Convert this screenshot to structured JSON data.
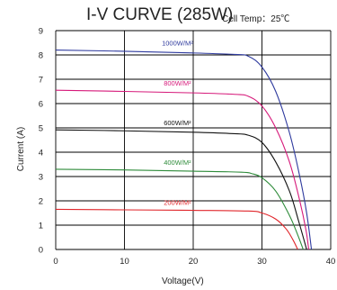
{
  "chart_data": {
    "type": "line",
    "title": "I-V CURVE (285W)",
    "subtitle": "Cell Temp：25℃",
    "xlabel": "Voltage(V)",
    "ylabel": "Current (A)",
    "xlim": [
      0,
      40
    ],
    "ylim": [
      0,
      9
    ],
    "xticks": [
      0,
      10,
      20,
      30,
      40
    ],
    "yticks": [
      0,
      1,
      2,
      3,
      4,
      5,
      6,
      7,
      8,
      9
    ],
    "grid": true,
    "series": [
      {
        "name": "1000W/M²",
        "color": "#2e3a9e",
        "isc": 8.2,
        "voc": 37.2,
        "points": [
          [
            0,
            8.2
          ],
          [
            10,
            8.15
          ],
          [
            20,
            8.08
          ],
          [
            26,
            8.02
          ],
          [
            28,
            7.95
          ],
          [
            30,
            7.5
          ],
          [
            32,
            6.5
          ],
          [
            34,
            4.8
          ],
          [
            35.5,
            3.0
          ],
          [
            36.5,
            1.5
          ],
          [
            37.2,
            0
          ]
        ]
      },
      {
        "name": "800W/M²",
        "color": "#d6197a",
        "isc": 6.55,
        "voc": 36.8,
        "points": [
          [
            0,
            6.55
          ],
          [
            10,
            6.5
          ],
          [
            20,
            6.44
          ],
          [
            26,
            6.38
          ],
          [
            28,
            6.3
          ],
          [
            30,
            5.9
          ],
          [
            32,
            5.0
          ],
          [
            34,
            3.6
          ],
          [
            35.5,
            2.0
          ],
          [
            36.4,
            0.8
          ],
          [
            36.8,
            0
          ]
        ]
      },
      {
        "name": "600W/M²",
        "color": "#111111",
        "isc": 4.92,
        "voc": 36.5,
        "points": [
          [
            0,
            4.92
          ],
          [
            10,
            4.88
          ],
          [
            20,
            4.82
          ],
          [
            26,
            4.76
          ],
          [
            28,
            4.7
          ],
          [
            30,
            4.4
          ],
          [
            32,
            3.6
          ],
          [
            34,
            2.4
          ],
          [
            35.3,
            1.2
          ],
          [
            36.5,
            0
          ]
        ]
      },
      {
        "name": "400W/M²",
        "color": "#2e8b3a",
        "isc": 3.3,
        "voc": 36.0,
        "points": [
          [
            0,
            3.3
          ],
          [
            10,
            3.27
          ],
          [
            20,
            3.22
          ],
          [
            27,
            3.18
          ],
          [
            28.5,
            3.12
          ],
          [
            30,
            2.95
          ],
          [
            32,
            2.4
          ],
          [
            34,
            1.4
          ],
          [
            35.2,
            0.6
          ],
          [
            36.0,
            0
          ]
        ]
      },
      {
        "name": "200W/M²",
        "color": "#e0262b",
        "isc": 1.65,
        "voc": 35.2,
        "points": [
          [
            0,
            1.65
          ],
          [
            10,
            1.63
          ],
          [
            20,
            1.61
          ],
          [
            28,
            1.58
          ],
          [
            30,
            1.5
          ],
          [
            32,
            1.25
          ],
          [
            33.5,
            0.85
          ],
          [
            34.5,
            0.4
          ],
          [
            35.2,
            0
          ]
        ]
      }
    ]
  }
}
